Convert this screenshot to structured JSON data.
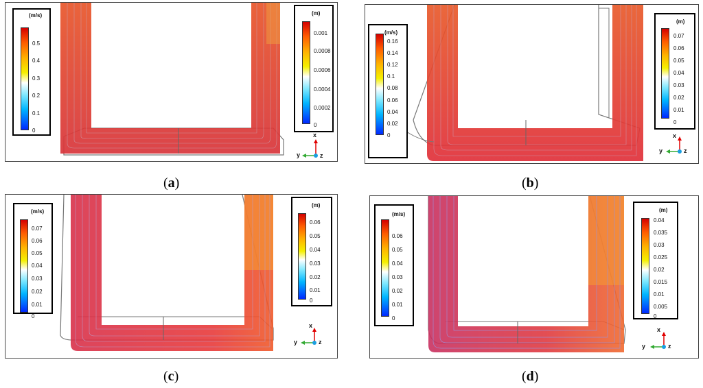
{
  "panels": [
    {
      "id": "a",
      "caption_open": "(",
      "caption_letter": "a",
      "caption_close": ")",
      "velocity_legend": {
        "unit": "(m/s)",
        "ticks": [
          "0.5",
          "0.4",
          "0.3",
          "0.2",
          "0.1",
          "0"
        ]
      },
      "displacement_legend": {
        "unit": "(m)",
        "ticks": [
          "0.001",
          "0.0008",
          "0.0006",
          "0.0004",
          "0.0002",
          "0"
        ]
      },
      "axes": {
        "x": "x",
        "y": "y",
        "z": "z"
      }
    },
    {
      "id": "b",
      "caption_open": "(",
      "caption_letter": "b",
      "caption_close": ")",
      "velocity_legend": {
        "unit": "(m/s)",
        "ticks": [
          "0.16",
          "0.14",
          "0.12",
          "0.1",
          "0.08",
          "0.06",
          "0.04",
          "0.02",
          "0"
        ]
      },
      "displacement_legend": {
        "unit": "(m)",
        "ticks": [
          "0.07",
          "0.06",
          "0.05",
          "0.04",
          "0.03",
          "0.02",
          "0.01",
          "0"
        ]
      },
      "axes": {
        "x": "x",
        "y": "y",
        "z": "z"
      }
    },
    {
      "id": "c",
      "caption_open": "(",
      "caption_letter": "c",
      "caption_close": ")",
      "velocity_legend": {
        "unit": "(m/s)",
        "ticks": [
          "0.07",
          "0.06",
          "0.05",
          "0.04",
          "0.03",
          "0.02",
          "0.01",
          "0"
        ]
      },
      "displacement_legend": {
        "unit": "(m)",
        "ticks": [
          "0.06",
          "0.05",
          "0.04",
          "0.03",
          "0.02",
          "0.01",
          "0"
        ]
      },
      "axes": {
        "x": "x",
        "y": "y",
        "z": "z"
      }
    },
    {
      "id": "d",
      "caption_open": "(",
      "caption_letter": "d",
      "caption_close": ")",
      "velocity_legend": {
        "unit": "(m/s)",
        "ticks": [
          "0.06",
          "0.05",
          "0.04",
          "0.03",
          "0.02",
          "0.01",
          "0"
        ]
      },
      "displacement_legend": {
        "unit": "(m)",
        "ticks": [
          "0.04",
          "0.035",
          "0.03",
          "0.025",
          "0.02",
          "0.015",
          "0.01",
          "0.005",
          "0"
        ]
      },
      "axes": {
        "x": "x",
        "y": "y",
        "z": "z"
      }
    }
  ],
  "colors": {
    "flow_red": "#e03030",
    "flow_orange": "#f07020",
    "frame": "#666666",
    "axis_x": "#e00000",
    "axis_y": "#33aa33",
    "axis_z": "#1a9ee0"
  }
}
